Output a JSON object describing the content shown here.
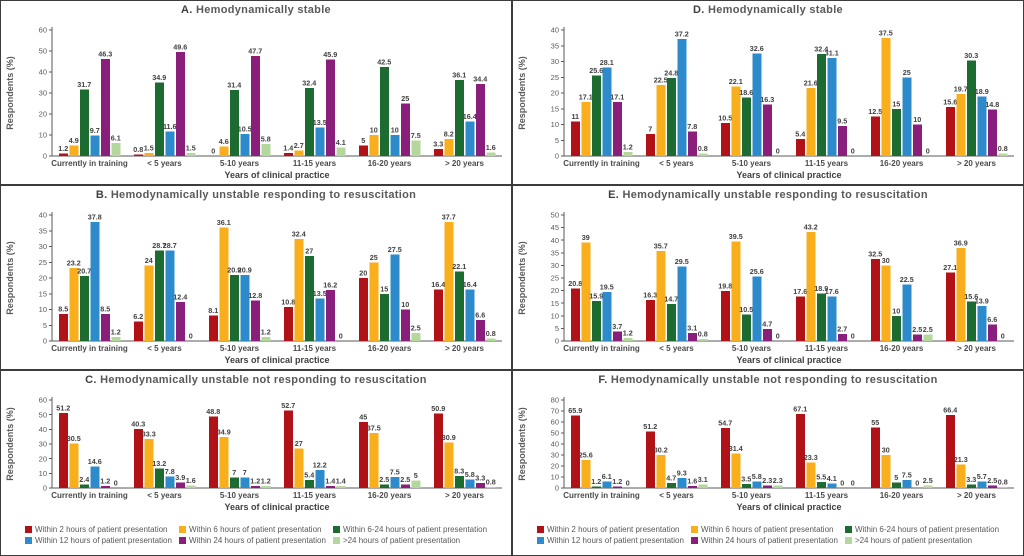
{
  "figure_name": "Timing of intervention by hemodynamic status and years of clinical practice",
  "legend": {
    "items": [
      {
        "label": "Within 2 hours of patient presentation",
        "color": "#b01217"
      },
      {
        "label": "Within 6 hours of patient presentation",
        "color": "#f9ae1b"
      },
      {
        "label": "Within 6-24 hours of patient presentation",
        "color": "#1c6b30"
      },
      {
        "label": "Within 12 hours of patient presentation",
        "color": "#2d8bcb"
      },
      {
        "label": "Within 24 hours of patient presentation",
        "color": "#8a1f7b"
      },
      {
        "label": ">24 hours of patient presentation",
        "color": "#b4d79e"
      }
    ]
  },
  "chart_data": [
    {
      "id": "A",
      "type": "bar",
      "letter": "A.",
      "label": "Hemodynamically stable",
      "title": "A. Hemodynamically stable",
      "xlabel": "Years of clinical practice",
      "ylabel": "Respondents (%)",
      "ylim": [
        0,
        60
      ],
      "ystep": 10,
      "grid": false,
      "categories": [
        "Currently in training",
        "< 5 years",
        "5-10 years",
        "11-15 years",
        "16-20 years",
        "> 20 years"
      ],
      "series": [
        {
          "name": "Within 2 hours of patient presentation",
          "values": [
            1.2,
            0.8,
            0,
            1.4,
            5,
            3.3
          ]
        },
        {
          "name": "Within 6 hours of patient presentation",
          "values": [
            4.9,
            1.5,
            4.6,
            2.7,
            10,
            8.2
          ]
        },
        {
          "name": "Within 6-24 hours of patient presentation",
          "values": [
            31.7,
            34.9,
            31.4,
            32.4,
            42.5,
            36.1
          ]
        },
        {
          "name": "Within 12 hours of patient presentation",
          "values": [
            9.7,
            11.6,
            10.5,
            13.5,
            10,
            16.4
          ]
        },
        {
          "name": "Within 24 hours of patient presentation",
          "values": [
            46.3,
            49.6,
            47.7,
            45.9,
            25,
            34.4
          ]
        },
        {
          "name": ">24 hours of patient presentation",
          "values": [
            6.1,
            1.5,
            5.8,
            4.1,
            7.5,
            1.6
          ]
        }
      ]
    },
    {
      "id": "B",
      "type": "bar",
      "letter": "B.",
      "label": "Hemodynamically unstable responding to resuscitation",
      "title": "B. Hemodynamically unstable responding to resuscitation",
      "xlabel": "Years of clinical practice",
      "ylabel": "Respondents (%)",
      "ylim": [
        0,
        40
      ],
      "ystep": 5,
      "grid": false,
      "categories": [
        "Currently in training",
        "< 5 years",
        "5-10 years",
        "11-15 years",
        "16-20 years",
        "> 20 years"
      ],
      "series": [
        {
          "name": "Within 2 hours of patient presentation",
          "values": [
            8.5,
            6.2,
            8.1,
            10.8,
            20,
            16.4
          ]
        },
        {
          "name": "Within 6 hours of patient presentation",
          "values": [
            23.2,
            24,
            36.1,
            32.4,
            25,
            37.7
          ]
        },
        {
          "name": "Within 6-24 hours of patient presentation",
          "values": [
            20.7,
            28.7,
            20.9,
            27,
            15,
            22.1
          ]
        },
        {
          "name": "Within 12 hours of patient presentation",
          "values": [
            37.8,
            28.7,
            20.9,
            13.5,
            27.5,
            16.4
          ]
        },
        {
          "name": "Within 24 hours of patient presentation",
          "values": [
            8.5,
            12.4,
            12.8,
            16.2,
            10,
            6.6
          ]
        },
        {
          "name": ">24 hours of patient presentation",
          "values": [
            1.2,
            0,
            1.2,
            0,
            2.5,
            0.8
          ]
        }
      ]
    },
    {
      "id": "C",
      "type": "bar",
      "letter": "C.",
      "label": "Hemodynamically unstable not responding to resuscitation",
      "title": "C. Hemodynamically unstable not responding to resuscitation",
      "xlabel": "Years of clinical practice",
      "ylabel": "Respondents (%)",
      "ylim": [
        0,
        60
      ],
      "ystep": 10,
      "grid": false,
      "categories": [
        "Currently in training",
        "< 5 years",
        "5-10 years",
        "11-15 years",
        "16-20 years",
        "> 20 years"
      ],
      "series": [
        {
          "name": "Within 2 hours of patient presentation",
          "values": [
            51.2,
            40.3,
            48.8,
            52.7,
            45,
            50.9
          ]
        },
        {
          "name": "Within 6 hours of patient presentation",
          "values": [
            30.5,
            33.3,
            34.9,
            27,
            37.5,
            30.9
          ]
        },
        {
          "name": "Within 6-24 hours of patient presentation",
          "values": [
            2.4,
            13.2,
            7,
            5.4,
            2.5,
            8.3
          ]
        },
        {
          "name": "Within 12 hours of patient presentation",
          "values": [
            14.6,
            7.8,
            7,
            12.2,
            7.5,
            5.8
          ]
        },
        {
          "name": "Within 24 hours of patient presentation",
          "values": [
            1.2,
            3.9,
            1.2,
            1.4,
            2.5,
            3.3
          ]
        },
        {
          "name": ">24 hours of patient presentation",
          "values": [
            0,
            1.6,
            1.2,
            1.4,
            5,
            0.8
          ]
        }
      ]
    },
    {
      "id": "D",
      "type": "bar",
      "letter": "D.",
      "label": "Hemodynamically stable",
      "title": "D. Hemodynamically stable",
      "xlabel": "Years of clinical practice",
      "ylabel": "Respondents (%)",
      "ylim": [
        0,
        40
      ],
      "ystep": 5,
      "grid": false,
      "categories": [
        "Currently in training",
        "< 5 years",
        "5-10 years",
        "11-15 years",
        "16-20 years",
        "> 20 years"
      ],
      "series": [
        {
          "name": "Within 2 hours of patient presentation",
          "values": [
            11,
            7,
            10.5,
            5.4,
            12.5,
            15.6
          ]
        },
        {
          "name": "Within 6 hours of patient presentation",
          "values": [
            17.1,
            22.5,
            22.1,
            21.6,
            37.5,
            19.7
          ]
        },
        {
          "name": "Within 6-24 hours of patient presentation",
          "values": [
            25.6,
            24.8,
            18.6,
            32.4,
            15,
            30.3
          ]
        },
        {
          "name": "Within 12 hours of patient presentation",
          "values": [
            28.1,
            37.2,
            32.6,
            31.1,
            25,
            18.9
          ]
        },
        {
          "name": "Within 24 hours of patient presentation",
          "values": [
            17.1,
            7.8,
            16.3,
            9.5,
            10,
            14.8
          ]
        },
        {
          "name": ">24 hours of patient presentation",
          "values": [
            1.2,
            0.8,
            0,
            0,
            0,
            0.8
          ]
        }
      ]
    },
    {
      "id": "E",
      "type": "bar",
      "letter": "E.",
      "label": "Hemodynamically unstable responding to resuscitation",
      "title": "E. Hemodynamically unstable responding to resuscitation",
      "xlabel": "Years of clinical practice",
      "ylabel": "Respondents (%)",
      "ylim": [
        0,
        50
      ],
      "ystep": 5,
      "grid": false,
      "categories": [
        "Currently in training",
        "< 5 years",
        "5-10 years",
        "11-15 years",
        "16-20 years",
        "> 20 years"
      ],
      "series": [
        {
          "name": "Within 2 hours of patient presentation",
          "values": [
            20.8,
            16.3,
            19.8,
            17.6,
            32.5,
            27.1
          ]
        },
        {
          "name": "Within 6 hours of patient presentation",
          "values": [
            39,
            35.7,
            39.5,
            43.2,
            30,
            36.9
          ]
        },
        {
          "name": "Within 6-24 hours of patient presentation",
          "values": [
            15.9,
            14.7,
            10.5,
            18.9,
            10,
            15.6
          ]
        },
        {
          "name": "Within 12 hours of patient presentation",
          "values": [
            19.5,
            29.5,
            25.6,
            17.6,
            22.5,
            13.9
          ]
        },
        {
          "name": "Within 24 hours of patient presentation",
          "values": [
            3.7,
            3.1,
            4.7,
            2.7,
            2.5,
            6.6
          ]
        },
        {
          "name": ">24 hours of patient presentation",
          "values": [
            1.2,
            0.8,
            0,
            0,
            2.5,
            0
          ]
        }
      ]
    },
    {
      "id": "F",
      "type": "bar",
      "letter": "F.",
      "label": "Hemodynamically unstable not responding to resuscitation",
      "title": "F. Hemodynamically unstable not responding to resuscitation",
      "xlabel": "Years of clinical practice",
      "ylabel": "Respondents (%)",
      "ylim": [
        0,
        80
      ],
      "ystep": 10,
      "grid": false,
      "categories": [
        "Currently in training",
        "< 5 years",
        "5-10 years",
        "11-15 years",
        "16-20 years",
        "> 20 years"
      ],
      "series": [
        {
          "name": "Within 2 hours of patient presentation",
          "values": [
            65.9,
            51.2,
            54.7,
            67.1,
            55,
            66.4
          ]
        },
        {
          "name": "Within 6 hours of patient presentation",
          "values": [
            25.6,
            30.2,
            31.4,
            23.3,
            30,
            21.3
          ]
        },
        {
          "name": "Within 6-24 hours of patient presentation",
          "values": [
            1.2,
            4.7,
            3.5,
            5.5,
            5,
            3.3
          ]
        },
        {
          "name": "Within 12 hours of patient presentation",
          "values": [
            6.1,
            9.3,
            5.8,
            4.1,
            7.5,
            5.7
          ]
        },
        {
          "name": "Within 24 hours of patient presentation",
          "values": [
            1.2,
            1.6,
            2.3,
            0,
            0,
            2.5
          ]
        },
        {
          "name": ">24 hours of patient presentation",
          "values": [
            0,
            3.1,
            2.3,
            0,
            2.5,
            0.8
          ]
        }
      ]
    }
  ]
}
